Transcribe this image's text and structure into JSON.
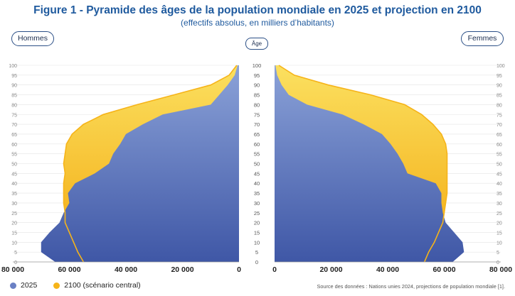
{
  "header": {
    "title": "Figure 1 - Pyramide des âges de la population mondiale en 2025 et projection en 2100",
    "subtitle": "(effectifs absolus, en milliers d’habitants)"
  },
  "labels": {
    "men": "Hommes",
    "women": "Femmes",
    "age": "Âge"
  },
  "legend": [
    {
      "label": "2025",
      "color": "#6a80c4"
    },
    {
      "label": "2100 (scénario central)",
      "color": "#f6b419"
    }
  ],
  "source": "Source des données : Nations unies 2024, projections de population mondiale [1].",
  "chart_data": {
    "type": "area",
    "title": "Figure 1 - Pyramide des âges de la population mondiale en 2025 et projection en 2100",
    "ylabel": "Âge",
    "ages": [
      0,
      5,
      10,
      15,
      20,
      25,
      30,
      35,
      40,
      45,
      50,
      55,
      60,
      65,
      70,
      75,
      80,
      85,
      90,
      95,
      100
    ],
    "y_ticks": [
      0,
      5,
      10,
      15,
      20,
      25,
      30,
      35,
      40,
      45,
      50,
      55,
      60,
      65,
      70,
      75,
      80,
      85,
      90,
      95,
      100
    ],
    "x_ticks": [
      80000,
      60000,
      40000,
      20000,
      0
    ],
    "x_tick_labels": [
      "80 000",
      "60 000",
      "40 000",
      "20 000",
      "0"
    ],
    "x_ticks_right_labels": [
      "0",
      "20 000",
      "40 000",
      "60 000",
      "80 000"
    ],
    "xlim": [
      0,
      80000
    ],
    "ylim": [
      0,
      101
    ],
    "series": [
      {
        "name": "2025",
        "side": "Hommes",
        "values": [
          65000,
          70000,
          70000,
          67000,
          63500,
          62000,
          60000,
          60500,
          58000,
          51000,
          46000,
          44500,
          42000,
          40000,
          34000,
          27000,
          10000,
          7000,
          4000,
          1500,
          500
        ]
      },
      {
        "name": "2025",
        "side": "Femmes",
        "values": [
          63000,
          67000,
          66500,
          63500,
          60500,
          59500,
          59000,
          59000,
          57000,
          47000,
          45500,
          43500,
          41000,
          38000,
          31500,
          24000,
          11500,
          5000,
          2500,
          900,
          300
        ]
      },
      {
        "name": "2100 (scénario central)",
        "side": "Hommes",
        "values": [
          55000,
          57000,
          58500,
          60000,
          61500,
          61500,
          62000,
          62000,
          62000,
          61500,
          62000,
          61500,
          61000,
          59000,
          55000,
          48000,
          36000,
          23000,
          10000,
          3500,
          800
        ]
      },
      {
        "name": "2100 (scénario central)",
        "side": "Femmes",
        "values": [
          53000,
          54500,
          56500,
          58000,
          59500,
          60000,
          60500,
          61000,
          61000,
          61000,
          61000,
          61000,
          60500,
          59000,
          56000,
          52000,
          46000,
          34000,
          19000,
          7000,
          1500
        ]
      }
    ]
  }
}
